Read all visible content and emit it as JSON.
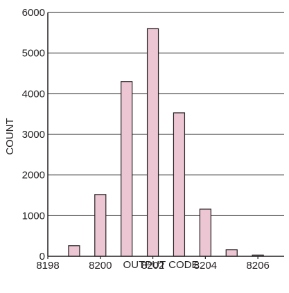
{
  "chart_data": {
    "type": "bar",
    "xlabel": "OUTPUT CODE",
    "ylabel": "COUNT",
    "xlim": [
      8198,
      8207
    ],
    "ylim": [
      0,
      6000
    ],
    "x_ticks": [
      "8198",
      "8200",
      "8202",
      "8204",
      "8206"
    ],
    "y_ticks": [
      "0",
      "1000",
      "2000",
      "3000",
      "4000",
      "5000",
      "6000"
    ],
    "grid": true,
    "categories": [
      8199,
      8200,
      8201,
      8202,
      8203,
      8204,
      8205,
      8206
    ],
    "values": [
      260,
      1520,
      4300,
      5600,
      3530,
      1160,
      160,
      30
    ]
  },
  "colors": {
    "bar_fill": "#ecc6d2",
    "bar_stroke": "#231f20",
    "axis": "#231f20",
    "grid": "#231f20"
  }
}
